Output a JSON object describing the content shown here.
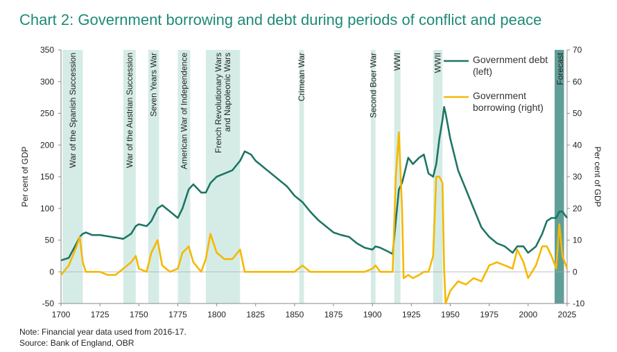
{
  "chart_data": {
    "type": "line",
    "title": "Chart 2: Government borrowing and debt during periods of conflict and peace",
    "y_label": "Per cent of GDP",
    "y2_label": "Per cent of GDP",
    "note": "Note: Financial year data used from 2016-17.",
    "source": "Source: Bank of England, OBR",
    "xlim": [
      1700,
      2025
    ],
    "xticks": [
      1700,
      1725,
      1750,
      1775,
      1800,
      1825,
      1850,
      1875,
      1900,
      1925,
      1950,
      1975,
      2000,
      2025
    ],
    "ylim": [
      -50,
      350
    ],
    "yticks": [
      -50,
      0,
      50,
      100,
      150,
      200,
      250,
      300,
      350
    ],
    "y2lim": [
      -10,
      70
    ],
    "y2ticks": [
      -10,
      0,
      10,
      20,
      30,
      40,
      50,
      60,
      70
    ],
    "period_color": "#d5ece6",
    "forecast_color": "#5f9f97",
    "periods": [
      {
        "label": [
          "War of the Spanish Succession"
        ],
        "start": 1701,
        "end": 1714
      },
      {
        "label": [
          "War of the Austrian Succession"
        ],
        "start": 1740,
        "end": 1748
      },
      {
        "label": [
          "Seven Years War"
        ],
        "start": 1756,
        "end": 1763
      },
      {
        "label": [
          "American War of Independence"
        ],
        "start": 1775,
        "end": 1783
      },
      {
        "label": [
          "French Revolutionary Wars",
          "and Napoleonic Wars"
        ],
        "start": 1793,
        "end": 1815
      },
      {
        "label": [
          "Crimean War"
        ],
        "start": 1853,
        "end": 1856
      },
      {
        "label": [
          "Second Boer War"
        ],
        "start": 1899,
        "end": 1902
      },
      {
        "label": [
          "WWI"
        ],
        "start": 1914,
        "end": 1918
      },
      {
        "label": [
          "WWII"
        ],
        "start": 1939,
        "end": 1945
      }
    ],
    "forecast": {
      "label": "Forecast",
      "start": 2017,
      "end": 2023
    },
    "x": [
      1700,
      1705,
      1710,
      1712,
      1714,
      1716,
      1720,
      1725,
      1730,
      1735,
      1740,
      1745,
      1748,
      1750,
      1755,
      1758,
      1762,
      1765,
      1770,
      1775,
      1778,
      1782,
      1785,
      1790,
      1793,
      1796,
      1800,
      1805,
      1810,
      1815,
      1818,
      1822,
      1825,
      1830,
      1835,
      1840,
      1845,
      1850,
      1855,
      1860,
      1865,
      1870,
      1875,
      1880,
      1885,
      1890,
      1895,
      1900,
      1902,
      1905,
      1910,
      1913,
      1915,
      1917,
      1919,
      1920,
      1923,
      1926,
      1930,
      1933,
      1936,
      1939,
      1941,
      1943,
      1945,
      1946,
      1947,
      1950,
      1955,
      1960,
      1965,
      1970,
      1975,
      1980,
      1985,
      1990,
      1993,
      1997,
      2000,
      2005,
      2009,
      2012,
      2015,
      2018,
      2020,
      2022,
      2025
    ],
    "series": [
      {
        "name": "Government debt (left)",
        "color": "#1e7565",
        "axis": "y",
        "values": [
          18,
          22,
          45,
          55,
          60,
          62,
          58,
          58,
          56,
          54,
          52,
          60,
          72,
          75,
          72,
          80,
          100,
          105,
          95,
          85,
          100,
          130,
          138,
          125,
          125,
          140,
          150,
          155,
          160,
          175,
          190,
          185,
          175,
          165,
          155,
          145,
          135,
          120,
          110,
          95,
          82,
          72,
          62,
          58,
          55,
          45,
          38,
          35,
          40,
          38,
          32,
          28,
          80,
          130,
          140,
          150,
          180,
          170,
          180,
          185,
          155,
          150,
          170,
          210,
          240,
          260,
          250,
          210,
          160,
          130,
          100,
          70,
          55,
          45,
          40,
          30,
          40,
          40,
          30,
          40,
          60,
          80,
          85,
          85,
          95,
          95,
          85
        ]
      },
      {
        "name": "Government borrowing (right)",
        "color": "#f5b800",
        "axis": "y2",
        "values": [
          -1,
          2,
          8,
          11,
          3,
          0,
          0,
          0,
          -1,
          -1,
          1,
          3,
          5,
          1,
          0,
          6,
          10,
          2,
          0,
          1,
          6,
          8,
          3,
          0,
          4,
          12,
          6,
          4,
          4,
          7,
          0,
          0,
          0,
          0,
          0,
          0,
          0,
          0,
          2,
          0,
          0,
          0,
          0,
          0,
          0,
          0,
          0,
          1,
          2,
          0,
          0,
          0,
          30,
          44,
          20,
          -2,
          -1,
          -2,
          -1,
          0,
          0,
          5,
          30,
          30,
          28,
          1,
          -10,
          -6,
          -3,
          -4,
          -2,
          -3,
          2,
          3,
          2,
          1,
          7,
          3,
          -2,
          2,
          8,
          8,
          5,
          1,
          15,
          5,
          1
        ]
      }
    ]
  }
}
